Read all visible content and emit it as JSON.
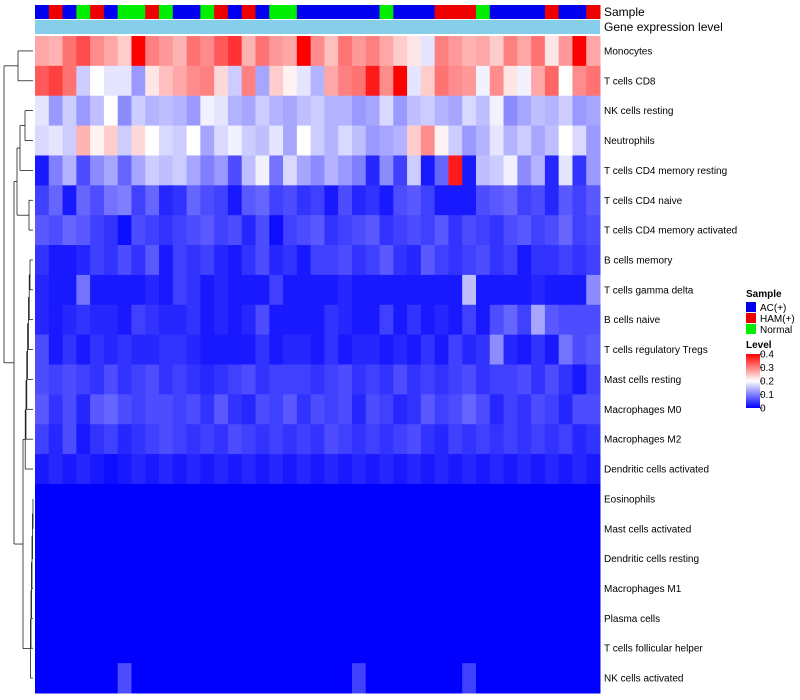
{
  "chart_data": {
    "type": "heatmap",
    "title": "",
    "annotations": {
      "sample_label": "Sample",
      "expression_label": "Gene expression level",
      "sample_groups": [
        "AC(+)",
        "HAM(+)",
        "AC(+)",
        "Normal",
        "HAM(+)",
        "AC(+)",
        "Normal",
        "Normal",
        "HAM(+)",
        "Normal",
        "AC(+)",
        "AC(+)",
        "Normal",
        "HAM(+)",
        "AC(+)",
        "HAM(+)",
        "AC(+)",
        "Normal",
        "Normal",
        "AC(+)",
        "AC(+)",
        "AC(+)",
        "AC(+)",
        "AC(+)",
        "AC(+)",
        "Normal",
        "AC(+)",
        "AC(+)",
        "AC(+)",
        "HAM(+)",
        "HAM(+)",
        "HAM(+)",
        "Normal",
        "AC(+)",
        "AC(+)",
        "AC(+)",
        "AC(+)",
        "HAM(+)",
        "AC(+)",
        "AC(+)",
        "HAM(+)"
      ]
    },
    "rows": [
      "Monocytes",
      "T cells CD8",
      "NK cells resting",
      "Neutrophils",
      "T cells CD4 memory resting",
      "T cells CD4 naive",
      "T cells CD4 memory activated",
      "B cells memory",
      "T cells gamma delta",
      "B cells naive",
      "T cells regulatory  Tregs",
      "Mast cells resting",
      "Macrophages M0",
      "Macrophages M2",
      "Dendritic cells activated",
      "Eosinophils",
      "Mast cells activated",
      "Dendritic cells resting",
      "Macrophages M1",
      "Plasma cells",
      "T cells follicular helper",
      "NK cells activated"
    ],
    "values": [
      [
        0.27,
        0.26,
        0.31,
        0.34,
        0.29,
        0.27,
        0.24,
        0.4,
        0.3,
        0.28,
        0.26,
        0.31,
        0.29,
        0.33,
        0.36,
        0.26,
        0.31,
        0.28,
        0.27,
        0.4,
        0.29,
        0.25,
        0.31,
        0.28,
        0.3,
        0.27,
        0.24,
        0.22,
        0.18,
        0.3,
        0.28,
        0.26,
        0.27,
        0.24,
        0.3,
        0.27,
        0.31,
        0.22,
        0.28,
        0.4,
        0.27
      ],
      [
        0.33,
        0.35,
        0.31,
        0.16,
        0.2,
        0.18,
        0.18,
        0.12,
        0.22,
        0.25,
        0.27,
        0.29,
        0.3,
        0.23,
        0.16,
        0.3,
        0.13,
        0.24,
        0.21,
        0.18,
        0.14,
        0.27,
        0.3,
        0.31,
        0.38,
        0.29,
        0.4,
        0.18,
        0.24,
        0.31,
        0.29,
        0.28,
        0.19,
        0.29,
        0.22,
        0.19,
        0.27,
        0.32,
        0.2,
        0.29,
        0.31
      ],
      [
        0.18,
        0.12,
        0.16,
        0.12,
        0.15,
        0.2,
        0.11,
        0.16,
        0.14,
        0.15,
        0.14,
        0.12,
        0.19,
        0.18,
        0.14,
        0.13,
        0.16,
        0.14,
        0.13,
        0.15,
        0.16,
        0.14,
        0.14,
        0.12,
        0.13,
        0.17,
        0.12,
        0.15,
        0.16,
        0.14,
        0.13,
        0.17,
        0.15,
        0.19,
        0.11,
        0.13,
        0.15,
        0.14,
        0.16,
        0.12,
        0.13
      ],
      [
        0.17,
        0.18,
        0.16,
        0.26,
        0.21,
        0.24,
        0.16,
        0.23,
        0.2,
        0.17,
        0.16,
        0.2,
        0.13,
        0.17,
        0.19,
        0.16,
        0.15,
        0.18,
        0.13,
        0.2,
        0.16,
        0.14,
        0.17,
        0.15,
        0.12,
        0.13,
        0.14,
        0.24,
        0.29,
        0.21,
        0.16,
        0.12,
        0.14,
        0.18,
        0.14,
        0.16,
        0.13,
        0.15,
        0.2,
        0.17,
        0.12
      ],
      [
        0.02,
        0.1,
        0.14,
        0.06,
        0.11,
        0.13,
        0.08,
        0.13,
        0.16,
        0.15,
        0.16,
        0.13,
        0.1,
        0.12,
        0.06,
        0.15,
        0.19,
        0.09,
        0.17,
        0.13,
        0.11,
        0.14,
        0.12,
        0.1,
        0.03,
        0.11,
        0.05,
        0.16,
        0.02,
        0.08,
        0.38,
        0.02,
        0.15,
        0.16,
        0.19,
        0.11,
        0.14,
        0.03,
        0.18,
        0.04,
        0.12
      ],
      [
        0.05,
        0.08,
        0.02,
        0.08,
        0.06,
        0.09,
        0.1,
        0.05,
        0.08,
        0.03,
        0.04,
        0.08,
        0.06,
        0.05,
        0.02,
        0.07,
        0.08,
        0.05,
        0.06,
        0.04,
        0.05,
        0.02,
        0.06,
        0.03,
        0.04,
        0.02,
        0.06,
        0.07,
        0.05,
        0.02,
        0.02,
        0.02,
        0.06,
        0.07,
        0.08,
        0.05,
        0.06,
        0.03,
        0.07,
        0.05,
        0.07
      ],
      [
        0.07,
        0.06,
        0.08,
        0.07,
        0.05,
        0.04,
        0.01,
        0.06,
        0.05,
        0.04,
        0.05,
        0.06,
        0.07,
        0.05,
        0.06,
        0.03,
        0.06,
        0.01,
        0.05,
        0.06,
        0.07,
        0.04,
        0.05,
        0.06,
        0.07,
        0.04,
        0.05,
        0.06,
        0.05,
        0.07,
        0.04,
        0.06,
        0.05,
        0.04,
        0.06,
        0.07,
        0.05,
        0.06,
        0.08,
        0.05,
        0.06
      ],
      [
        0.04,
        0.02,
        0.02,
        0.03,
        0.05,
        0.04,
        0.06,
        0.04,
        0.07,
        0.02,
        0.05,
        0.04,
        0.05,
        0.03,
        0.02,
        0.04,
        0.06,
        0.03,
        0.04,
        0.02,
        0.05,
        0.05,
        0.06,
        0.04,
        0.05,
        0.07,
        0.04,
        0.03,
        0.07,
        0.05,
        0.04,
        0.05,
        0.06,
        0.04,
        0.05,
        0.02,
        0.04,
        0.04,
        0.05,
        0.04,
        0.05
      ],
      [
        0.03,
        0.02,
        0.02,
        0.09,
        0.02,
        0.02,
        0.02,
        0.02,
        0.03,
        0.02,
        0.05,
        0.04,
        0.02,
        0.03,
        0.02,
        0.02,
        0.02,
        0.05,
        0.02,
        0.02,
        0.02,
        0.02,
        0.03,
        0.02,
        0.02,
        0.02,
        0.02,
        0.02,
        0.02,
        0.02,
        0.02,
        0.15,
        0.02,
        0.02,
        0.02,
        0.02,
        0.03,
        0.02,
        0.02,
        0.02,
        0.11
      ],
      [
        0.03,
        0.02,
        0.03,
        0.04,
        0.03,
        0.03,
        0.02,
        0.05,
        0.04,
        0.03,
        0.03,
        0.04,
        0.02,
        0.03,
        0.02,
        0.03,
        0.06,
        0.02,
        0.02,
        0.02,
        0.02,
        0.04,
        0.03,
        0.02,
        0.02,
        0.05,
        0.02,
        0.04,
        0.02,
        0.03,
        0.02,
        0.05,
        0.02,
        0.06,
        0.08,
        0.05,
        0.13,
        0.07,
        0.06,
        0.06,
        0.06
      ],
      [
        0.06,
        0.02,
        0.04,
        0.02,
        0.04,
        0.03,
        0.04,
        0.03,
        0.03,
        0.04,
        0.04,
        0.03,
        0.02,
        0.02,
        0.02,
        0.02,
        0.04,
        0.02,
        0.03,
        0.03,
        0.02,
        0.04,
        0.02,
        0.03,
        0.03,
        0.02,
        0.03,
        0.02,
        0.04,
        0.02,
        0.05,
        0.03,
        0.04,
        0.11,
        0.03,
        0.02,
        0.04,
        0.02,
        0.09,
        0.06,
        0.07
      ],
      [
        0.06,
        0.05,
        0.06,
        0.05,
        0.04,
        0.06,
        0.04,
        0.05,
        0.06,
        0.04,
        0.05,
        0.04,
        0.03,
        0.04,
        0.05,
        0.06,
        0.04,
        0.05,
        0.05,
        0.05,
        0.04,
        0.05,
        0.06,
        0.04,
        0.05,
        0.04,
        0.06,
        0.04,
        0.05,
        0.04,
        0.05,
        0.06,
        0.04,
        0.05,
        0.05,
        0.06,
        0.04,
        0.06,
        0.04,
        0.02,
        0.05
      ],
      [
        0.07,
        0.04,
        0.06,
        0.03,
        0.07,
        0.08,
        0.06,
        0.05,
        0.06,
        0.06,
        0.05,
        0.06,
        0.04,
        0.07,
        0.04,
        0.03,
        0.06,
        0.05,
        0.07,
        0.04,
        0.06,
        0.05,
        0.06,
        0.03,
        0.06,
        0.05,
        0.03,
        0.04,
        0.07,
        0.05,
        0.06,
        0.08,
        0.06,
        0.03,
        0.05,
        0.04,
        0.06,
        0.05,
        0.03,
        0.06,
        0.06
      ],
      [
        0.05,
        0.03,
        0.06,
        0.02,
        0.04,
        0.05,
        0.03,
        0.04,
        0.05,
        0.06,
        0.05,
        0.04,
        0.05,
        0.04,
        0.06,
        0.05,
        0.04,
        0.05,
        0.04,
        0.05,
        0.04,
        0.06,
        0.05,
        0.04,
        0.05,
        0.04,
        0.05,
        0.06,
        0.04,
        0.03,
        0.05,
        0.04,
        0.05,
        0.04,
        0.05,
        0.04,
        0.05,
        0.04,
        0.05,
        0.03,
        0.04
      ],
      [
        0.02,
        0.03,
        0.02,
        0.03,
        0.02,
        0.01,
        0.02,
        0.03,
        0.02,
        0.03,
        0.02,
        0.03,
        0.02,
        0.03,
        0.02,
        0.03,
        0.02,
        0.03,
        0.02,
        0.03,
        0.02,
        0.03,
        0.02,
        0.03,
        0.02,
        0.03,
        0.02,
        0.03,
        0.02,
        0.03,
        0.02,
        0.03,
        0.02,
        0.03,
        0.02,
        0.03,
        0.02,
        0.03,
        0.02,
        0.03,
        0.02
      ],
      [
        0.0,
        0.0,
        0.0,
        0.0,
        0.0,
        0.0,
        0.0,
        0.0,
        0.0,
        0.0,
        0.0,
        0.0,
        0.0,
        0.0,
        0.0,
        0.0,
        0.0,
        0.0,
        0.0,
        0.0,
        0.0,
        0.0,
        0.0,
        0.0,
        0.0,
        0.0,
        0.0,
        0.0,
        0.0,
        0.0,
        0.0,
        0.0,
        0.0,
        0.0,
        0.0,
        0.0,
        0.0,
        0.0,
        0.0,
        0.0,
        0.0
      ],
      [
        0.0,
        0.0,
        0.0,
        0.0,
        0.0,
        0.0,
        0.0,
        0.0,
        0.0,
        0.0,
        0.0,
        0.0,
        0.0,
        0.0,
        0.0,
        0.0,
        0.0,
        0.0,
        0.0,
        0.0,
        0.0,
        0.0,
        0.0,
        0.0,
        0.0,
        0.0,
        0.0,
        0.0,
        0.0,
        0.0,
        0.0,
        0.0,
        0.0,
        0.0,
        0.0,
        0.0,
        0.0,
        0.0,
        0.0,
        0.0,
        0.0
      ],
      [
        0.0,
        0.0,
        0.0,
        0.0,
        0.0,
        0.0,
        0.0,
        0.0,
        0.0,
        0.0,
        0.0,
        0.0,
        0.0,
        0.0,
        0.0,
        0.0,
        0.0,
        0.0,
        0.0,
        0.0,
        0.0,
        0.0,
        0.0,
        0.0,
        0.0,
        0.0,
        0.0,
        0.0,
        0.0,
        0.0,
        0.0,
        0.0,
        0.0,
        0.0,
        0.0,
        0.0,
        0.0,
        0.0,
        0.0,
        0.0,
        0.0
      ],
      [
        0.0,
        0.0,
        0.0,
        0.0,
        0.0,
        0.0,
        0.0,
        0.0,
        0.0,
        0.0,
        0.0,
        0.0,
        0.0,
        0.0,
        0.0,
        0.0,
        0.0,
        0.0,
        0.0,
        0.0,
        0.0,
        0.0,
        0.0,
        0.0,
        0.0,
        0.0,
        0.0,
        0.0,
        0.0,
        0.0,
        0.0,
        0.0,
        0.0,
        0.0,
        0.0,
        0.0,
        0.0,
        0.0,
        0.0,
        0.0,
        0.0
      ],
      [
        0.0,
        0.0,
        0.0,
        0.0,
        0.0,
        0.0,
        0.0,
        0.0,
        0.0,
        0.0,
        0.0,
        0.0,
        0.0,
        0.0,
        0.0,
        0.0,
        0.0,
        0.0,
        0.0,
        0.0,
        0.0,
        0.0,
        0.0,
        0.0,
        0.0,
        0.0,
        0.0,
        0.0,
        0.0,
        0.0,
        0.0,
        0.0,
        0.0,
        0.0,
        0.0,
        0.0,
        0.0,
        0.0,
        0.0,
        0.0,
        0.0
      ],
      [
        0.0,
        0.0,
        0.0,
        0.0,
        0.0,
        0.0,
        0.0,
        0.0,
        0.0,
        0.0,
        0.0,
        0.0,
        0.0,
        0.0,
        0.0,
        0.0,
        0.0,
        0.0,
        0.0,
        0.0,
        0.0,
        0.0,
        0.0,
        0.0,
        0.0,
        0.0,
        0.0,
        0.0,
        0.0,
        0.0,
        0.0,
        0.0,
        0.0,
        0.0,
        0.0,
        0.0,
        0.0,
        0.0,
        0.0,
        0.0,
        0.0
      ],
      [
        0.0,
        0.0,
        0.0,
        0.0,
        0.0,
        0.0,
        0.06,
        0.0,
        0.0,
        0.0,
        0.0,
        0.0,
        0.0,
        0.0,
        0.0,
        0.0,
        0.0,
        0.0,
        0.0,
        0.0,
        0.0,
        0.0,
        0.0,
        0.05,
        0.0,
        0.0,
        0.0,
        0.0,
        0.0,
        0.0,
        0.0,
        0.05,
        0.0,
        0.0,
        0.0,
        0.0,
        0.0,
        0.0,
        0.0,
        0.0,
        0.0
      ]
    ],
    "legend": {
      "sample_title": "Sample",
      "sample_items": [
        {
          "label": "AC(+)",
          "color": "#0000ee"
        },
        {
          "label": "HAM(+)",
          "color": "#ee0000"
        },
        {
          "label": "Normal",
          "color": "#00ee00"
        }
      ],
      "level_title": "Level",
      "level_ticks": [
        0.4,
        0.3,
        0.2,
        0.1,
        0
      ],
      "placement": "right"
    },
    "colors": {
      "low": "#0000ff",
      "mid": "#ffffff",
      "high": "#ff0000",
      "expression_bar": "#87ceeb"
    },
    "scale": {
      "min": 0,
      "mid": 0.2,
      "max": 0.4
    }
  }
}
